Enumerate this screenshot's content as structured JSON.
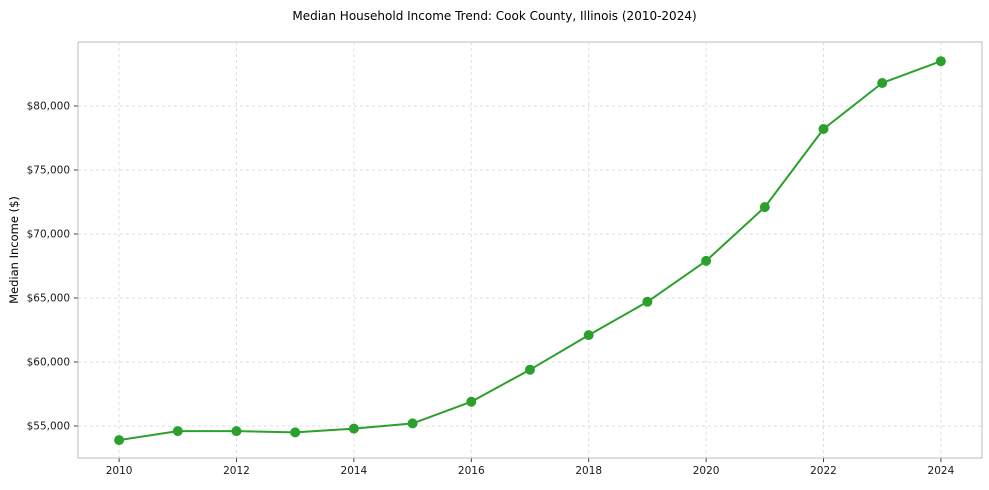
{
  "chart_data": {
    "type": "line",
    "title": "Median Household Income Trend: Cook County, Illinois (2010-2024)",
    "xlabel": "",
    "ylabel": "Median Income ($)",
    "x": [
      2010,
      2011,
      2012,
      2013,
      2014,
      2015,
      2016,
      2017,
      2018,
      2019,
      2020,
      2021,
      2022,
      2023,
      2024
    ],
    "series": [
      {
        "name": "Median Household Income",
        "values": [
          53900,
          54600,
          54600,
          54500,
          54800,
          55200,
          56900,
          59400,
          62100,
          64700,
          67900,
          72100,
          78200,
          81800,
          83500
        ]
      }
    ],
    "xlim": [
      2009.3,
      2024.7
    ],
    "ylim": [
      52500,
      85000
    ],
    "xticks": [
      2010,
      2012,
      2014,
      2016,
      2018,
      2020,
      2022,
      2024
    ],
    "xtick_labels": [
      "2010",
      "2012",
      "2014",
      "2016",
      "2018",
      "2020",
      "2022",
      "2024"
    ],
    "yticks": [
      55000,
      60000,
      65000,
      70000,
      75000,
      80000
    ],
    "ytick_labels": [
      "$55,000",
      "$60,000",
      "$65,000",
      "$70,000",
      "$75,000",
      "$80,000"
    ],
    "grid": true,
    "grid_style": "dashed",
    "legend_position": "none",
    "colors": {
      "line": "#2ca02c",
      "marker": "#2ca02c",
      "grid": "#dcdcdc",
      "border": "#bdbdbd",
      "tick": "#262626",
      "text": "#1a1a1a",
      "background": "#ffffff"
    }
  }
}
